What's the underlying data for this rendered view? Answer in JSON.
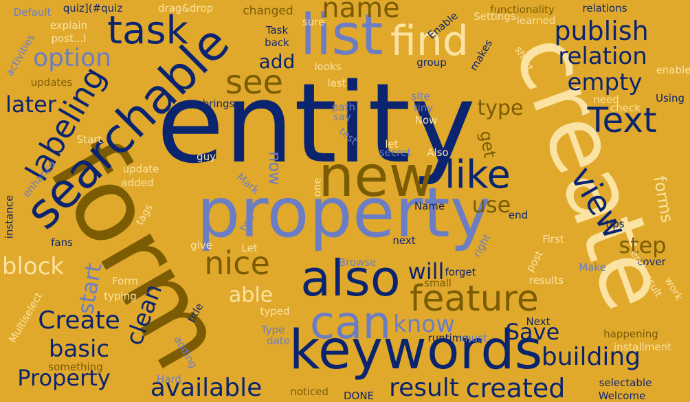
{
  "palette": {
    "background": "#e0a92c",
    "navy": "#0b2470",
    "blue": "#06307c",
    "periwinkle": "#6b7dc3",
    "olive": "#7b5c03",
    "cream": "#fbe3a3"
  },
  "words": [
    {
      "text": "entity",
      "color": "navy",
      "rotated": false
    },
    {
      "text": "create",
      "color": "cream",
      "rotated": true
    },
    {
      "text": "form",
      "color": "olive",
      "rotated": true
    },
    {
      "text": "property",
      "color": "periwinkle",
      "rotated": false
    },
    {
      "text": "keywords",
      "color": "navy",
      "rotated": false
    },
    {
      "text": "new",
      "color": "olive",
      "rotated": false
    },
    {
      "text": "searchable",
      "color": "navy",
      "rotated": true
    },
    {
      "text": "also",
      "color": "navy",
      "rotated": false
    },
    {
      "text": "can",
      "color": "periwinkle",
      "rotated": false
    },
    {
      "text": "list",
      "color": "periwinkle",
      "rotated": false
    },
    {
      "text": "find",
      "color": "cream",
      "rotated": false
    },
    {
      "text": "task",
      "color": "navy",
      "rotated": false
    },
    {
      "text": "Text",
      "color": "navy",
      "rotated": false
    },
    {
      "text": "like",
      "color": "navy",
      "rotated": false
    },
    {
      "text": "feature",
      "color": "olive",
      "rotated": false
    },
    {
      "text": "nice",
      "color": "olive",
      "rotated": false
    },
    {
      "text": "labeling",
      "color": "navy",
      "rotated": true
    },
    {
      "text": "see",
      "color": "olive",
      "rotated": false
    },
    {
      "text": "view",
      "color": "navy",
      "rotated": true
    },
    {
      "text": "publish",
      "color": "navy",
      "rotated": false
    },
    {
      "text": "relation",
      "color": "navy",
      "rotated": false
    },
    {
      "text": "empty",
      "color": "navy",
      "rotated": false
    },
    {
      "text": "option",
      "color": "periwinkle",
      "rotated": false
    },
    {
      "text": "name",
      "color": "olive",
      "rotated": false
    },
    {
      "text": "building",
      "color": "navy",
      "rotated": false
    },
    {
      "text": "created",
      "color": "navy",
      "rotated": false
    },
    {
      "text": "Create",
      "color": "navy",
      "rotated": false
    },
    {
      "text": "Property",
      "color": "navy",
      "rotated": false
    },
    {
      "text": "available",
      "color": "navy",
      "rotated": false
    },
    {
      "text": "result",
      "color": "navy",
      "rotated": false
    },
    {
      "text": "block",
      "color": "cream",
      "rotated": false
    },
    {
      "text": "basic",
      "color": "navy",
      "rotated": false
    },
    {
      "text": "clean",
      "color": "navy",
      "rotated": true
    },
    {
      "text": "start",
      "color": "periwinkle",
      "rotated": true
    },
    {
      "text": "able",
      "color": "cream",
      "rotated": false
    },
    {
      "text": "know",
      "color": "periwinkle",
      "rotated": false
    },
    {
      "text": "Save",
      "color": "navy",
      "rotated": false
    },
    {
      "text": "will",
      "color": "navy",
      "rotated": false
    },
    {
      "text": "use",
      "color": "olive",
      "rotated": false
    },
    {
      "text": "step",
      "color": "olive",
      "rotated": false
    },
    {
      "text": "type",
      "color": "olive",
      "rotated": false
    },
    {
      "text": "get",
      "color": "olive",
      "rotated": true
    },
    {
      "text": "add",
      "color": "navy",
      "rotated": false
    },
    {
      "text": "later",
      "color": "navy",
      "rotated": false
    },
    {
      "text": "now",
      "color": "periwinkle",
      "rotated": true
    },
    {
      "text": "forms",
      "color": "cream",
      "rotated": true
    },
    {
      "text": "Default",
      "color": "periwinkle",
      "rotated": false
    },
    {
      "text": "quiz](#quiz",
      "color": "navy",
      "rotated": false
    },
    {
      "text": "drag&drop",
      "color": "cream",
      "rotated": false
    },
    {
      "text": "changed",
      "color": "olive",
      "rotated": false
    },
    {
      "text": "sure",
      "color": "cream",
      "rotated": false
    },
    {
      "text": "functionality",
      "color": "olive",
      "rotated": false
    },
    {
      "text": "relations",
      "color": "navy",
      "rotated": false
    },
    {
      "text": "explain",
      "color": "cream",
      "rotated": false
    },
    {
      "text": "post...I",
      "color": "cream",
      "rotated": false
    },
    {
      "text": "Task",
      "color": "navy",
      "rotated": false
    },
    {
      "text": "back",
      "color": "navy",
      "rotated": false
    },
    {
      "text": "Enable",
      "color": "navy",
      "rotated": true
    },
    {
      "text": "Settings",
      "color": "cream",
      "rotated": false
    },
    {
      "text": "learned",
      "color": "cream",
      "rotated": false
    },
    {
      "text": "activities",
      "color": "periwinkle",
      "rotated": true
    },
    {
      "text": "updates",
      "color": "olive",
      "rotated": false
    },
    {
      "text": "looks",
      "color": "cream",
      "rotated": false
    },
    {
      "text": "group",
      "color": "navy",
      "rotated": false
    },
    {
      "text": "makes",
      "color": "navy",
      "rotated": true
    },
    {
      "text": "short",
      "color": "cream",
      "rotated": true
    },
    {
      "text": "enable",
      "color": "cream",
      "rotated": false
    },
    {
      "text": "last",
      "color": "cream",
      "rotated": false
    },
    {
      "text": "site",
      "color": "periwinkle",
      "rotated": false
    },
    {
      "text": "need",
      "color": "cream",
      "rotated": false
    },
    {
      "text": "Using",
      "color": "navy",
      "rotated": false
    },
    {
      "text": "brings",
      "color": "navy",
      "rotated": false
    },
    {
      "text": "path",
      "color": "periwinkle",
      "rotated": false
    },
    {
      "text": "tiny",
      "color": "periwinkle",
      "rotated": false
    },
    {
      "text": "check",
      "color": "cream",
      "rotated": false
    },
    {
      "text": "say",
      "color": "periwinkle",
      "rotated": false
    },
    {
      "text": "Now",
      "color": "cream",
      "rotated": false
    },
    {
      "text": "test",
      "color": "periwinkle",
      "rotated": true
    },
    {
      "text": "Start",
      "color": "cream",
      "rotated": false
    },
    {
      "text": "let",
      "color": "cream",
      "rotated": false
    },
    {
      "text": "secret",
      "color": "periwinkle",
      "rotated": false
    },
    {
      "text": "Also",
      "color": "cream",
      "rotated": false
    },
    {
      "text": "guy",
      "color": "cream",
      "rotated": false
    },
    {
      "text": "enhance",
      "color": "periwinkle",
      "rotated": true
    },
    {
      "text": "update",
      "color": "cream",
      "rotated": false
    },
    {
      "text": "added",
      "color": "cream",
      "rotated": false
    },
    {
      "text": "Mark",
      "color": "periwinkle",
      "rotated": true
    },
    {
      "text": "one",
      "color": "cream",
      "rotated": true
    },
    {
      "text": "instance",
      "color": "navy",
      "rotated": true
    },
    {
      "text": "tags",
      "color": "cream",
      "rotated": true
    },
    {
      "text": "two",
      "color": "periwinkle",
      "rotated": true
    },
    {
      "text": "Name",
      "color": "navy",
      "rotated": false
    },
    {
      "text": "end",
      "color": "navy",
      "rotated": false
    },
    {
      "text": "tips",
      "color": "navy",
      "rotated": false
    },
    {
      "text": "fans",
      "color": "navy",
      "rotated": false
    },
    {
      "text": "give",
      "color": "cream",
      "rotated": false
    },
    {
      "text": "Let",
      "color": "cream",
      "rotated": false
    },
    {
      "text": "next",
      "color": "navy",
      "rotated": false
    },
    {
      "text": "right",
      "color": "periwinkle",
      "rotated": true
    },
    {
      "text": "First",
      "color": "cream",
      "rotated": false
    },
    {
      "text": "cover",
      "color": "navy",
      "rotated": false
    },
    {
      "text": "Browse",
      "color": "periwinkle",
      "rotated": false
    },
    {
      "text": "forget",
      "color": "navy",
      "rotated": false
    },
    {
      "text": "post",
      "color": "cream",
      "rotated": true
    },
    {
      "text": "Make",
      "color": "periwinkle",
      "rotated": false
    },
    {
      "text": "end-result",
      "color": "cream",
      "rotated": true
    },
    {
      "text": "work",
      "color": "cream",
      "rotated": true
    },
    {
      "text": "Form",
      "color": "cream",
      "rotated": false
    },
    {
      "text": "small",
      "color": "olive",
      "rotated": false
    },
    {
      "text": "results",
      "color": "cream",
      "rotated": false
    },
    {
      "text": "typing",
      "color": "cream",
      "rotated": false
    },
    {
      "text": "title",
      "color": "navy",
      "rotated": true
    },
    {
      "text": "typed",
      "color": "cream",
      "rotated": false
    },
    {
      "text": "Multiselect",
      "color": "cream",
      "rotated": true
    },
    {
      "text": "Type",
      "color": "periwinkle",
      "rotated": false
    },
    {
      "text": "date",
      "color": "periwinkle",
      "rotated": false
    },
    {
      "text": "Next",
      "color": "navy",
      "rotated": false
    },
    {
      "text": "happening",
      "color": "olive",
      "rotated": false
    },
    {
      "text": "runtime",
      "color": "navy",
      "rotated": false
    },
    {
      "text": "must",
      "color": "periwinkle",
      "rotated": false
    },
    {
      "text": "installment",
      "color": "cream",
      "rotated": false
    },
    {
      "text": "adding",
      "color": "periwinkle",
      "rotated": true
    },
    {
      "text": "something",
      "color": "olive",
      "rotated": false
    },
    {
      "text": "Hard",
      "color": "periwinkle",
      "rotated": false
    },
    {
      "text": "noticed",
      "color": "olive",
      "rotated": false
    },
    {
      "text": "DONE",
      "color": "navy",
      "rotated": false
    },
    {
      "text": "selectable",
      "color": "navy",
      "rotated": false
    },
    {
      "text": "Welcome",
      "color": "navy",
      "rotated": false
    }
  ]
}
